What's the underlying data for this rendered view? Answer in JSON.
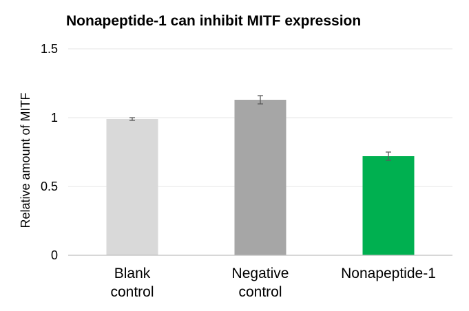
{
  "chart_data": {
    "type": "bar",
    "title": "Nonapeptide-1 can inhibit MITF expression",
    "ylabel": "Relative amount of MITF",
    "xlabel": "",
    "categories": [
      [
        "Blank",
        "control"
      ],
      [
        "Negative",
        "control"
      ],
      [
        "Nonapeptide-1"
      ]
    ],
    "values": [
      0.99,
      1.13,
      0.72
    ],
    "errors": [
      0.01,
      0.03,
      0.03
    ],
    "colors": [
      "#d9d9d9",
      "#a6a6a6",
      "#00b050"
    ],
    "ylim": [
      0,
      1.5
    ],
    "yticks": [
      0,
      0.5,
      1,
      1.5
    ],
    "ytick_labels": [
      "0",
      "0.5",
      "1",
      "1.5"
    ],
    "grid": true,
    "legend": false
  }
}
